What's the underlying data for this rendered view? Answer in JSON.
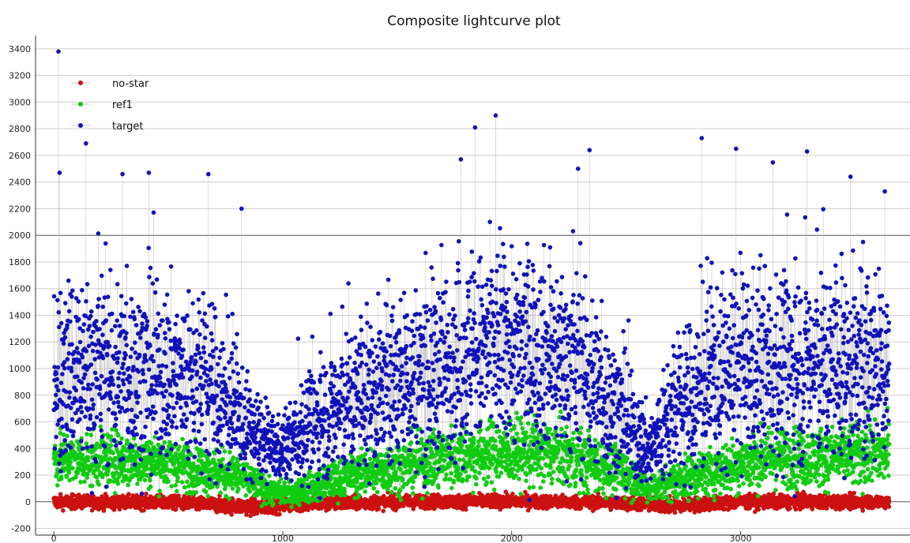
{
  "chart_data": {
    "type": "scatter",
    "title": "Composite lightcurve plot",
    "xlabel": "",
    "ylabel": "",
    "xlim": [
      -80,
      3740
    ],
    "ylim": [
      -250,
      3500
    ],
    "x_ticks": [
      0,
      1000,
      2000,
      3000
    ],
    "y_ticks": [
      -200,
      0,
      200,
      400,
      600,
      800,
      1000,
      1200,
      1400,
      1600,
      1800,
      2000,
      2200,
      2400,
      2600,
      2800,
      3000,
      3200,
      3400
    ],
    "grid": true,
    "legend_position": "top-left",
    "lines_connecting_points": true,
    "n_points_per_series": 3650,
    "series": [
      {
        "name": "no-star",
        "color": "#cc1111",
        "envelope": {
          "x": [
            0,
            500,
            900,
            1000,
            1500,
            2000,
            2500,
            2700,
            3000,
            3500,
            3650
          ],
          "mean": [
            0,
            -5,
            -40,
            -20,
            0,
            5,
            -10,
            -30,
            0,
            0,
            0
          ],
          "spread": [
            45,
            45,
            55,
            50,
            45,
            45,
            45,
            50,
            45,
            45,
            45
          ]
        }
      },
      {
        "name": "ref1",
        "color": "#11cc11",
        "envelope": {
          "x": [
            0,
            200,
            500,
            800,
            950,
            1050,
            1300,
            1700,
            2000,
            2200,
            2500,
            2600,
            2800,
            3100,
            3400,
            3650
          ],
          "mean": [
            320,
            320,
            300,
            200,
            70,
            70,
            200,
            330,
            380,
            360,
            220,
            100,
            200,
            330,
            340,
            360
          ],
          "spread": [
            180,
            180,
            170,
            140,
            80,
            80,
            140,
            200,
            220,
            220,
            160,
            90,
            150,
            200,
            200,
            220
          ]
        }
      },
      {
        "name": "target",
        "color": "#1111bb",
        "envelope": {
          "x": [
            0,
            100,
            300,
            500,
            700,
            900,
            1000,
            1100,
            1300,
            1600,
            1900,
            2100,
            2300,
            2500,
            2600,
            2700,
            2900,
            3200,
            3500,
            3650
          ],
          "mean": [
            950,
            1000,
            950,
            950,
            850,
            450,
            380,
            550,
            750,
            950,
            1150,
            1150,
            1000,
            600,
            380,
            650,
            950,
            1000,
            1000,
            1000
          ],
          "spread": [
            600,
            650,
            600,
            600,
            550,
            250,
            200,
            350,
            500,
            600,
            650,
            650,
            600,
            400,
            250,
            450,
            600,
            650,
            650,
            650
          ]
        },
        "peaks": [
          {
            "x": 20,
            "y": 3380
          },
          {
            "x": 25,
            "y": 2470
          },
          {
            "x": 140,
            "y": 2690
          },
          {
            "x": 300,
            "y": 2460
          },
          {
            "x": 415,
            "y": 2470
          },
          {
            "x": 675,
            "y": 2460
          },
          {
            "x": 820,
            "y": 2200
          },
          {
            "x": 1840,
            "y": 2810
          },
          {
            "x": 1930,
            "y": 2900
          },
          {
            "x": 2290,
            "y": 2500
          },
          {
            "x": 2340,
            "y": 2640
          },
          {
            "x": 2830,
            "y": 2730
          },
          {
            "x": 2980,
            "y": 2650
          },
          {
            "x": 3290,
            "y": 2630
          },
          {
            "x": 3480,
            "y": 2440
          },
          {
            "x": 3630,
            "y": 2330
          }
        ]
      }
    ]
  }
}
